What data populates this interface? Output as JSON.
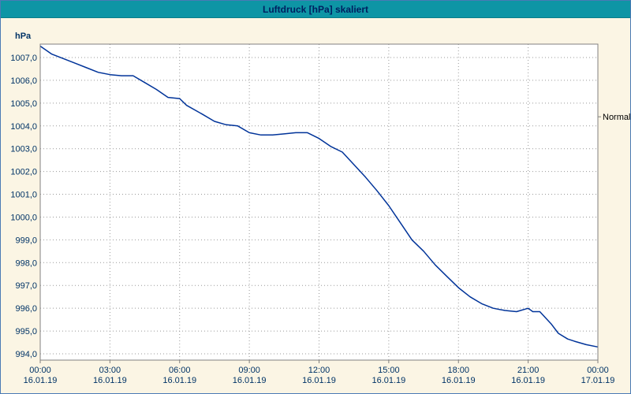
{
  "window": {
    "title": "Luftdruck [hPa] skaliert"
  },
  "chart_data": {
    "type": "line",
    "title": "Luftdruck [hPa] skaliert",
    "ylabel": "hPa",
    "xlabel": "",
    "ylim": [
      994,
      1007
    ],
    "xlim_hours": [
      0,
      24
    ],
    "grid": true,
    "y_tick_labels": [
      "994,0",
      "995,0",
      "996,0",
      "997,0",
      "998,0",
      "999,0",
      "1000,0",
      "1001,0",
      "1002,0",
      "1003,0",
      "1004,0",
      "1005,0",
      "1006,0",
      "1007,0"
    ],
    "x_ticks": [
      {
        "time": "00:00",
        "date": "16.01.19"
      },
      {
        "time": "03:00",
        "date": "16.01.19"
      },
      {
        "time": "06:00",
        "date": "16.01.19"
      },
      {
        "time": "09:00",
        "date": "16.01.19"
      },
      {
        "time": "12:00",
        "date": "16.01.19"
      },
      {
        "time": "15:00",
        "date": "16.01.19"
      },
      {
        "time": "18:00",
        "date": "16.01.19"
      },
      {
        "time": "21:00",
        "date": "16.01.19"
      },
      {
        "time": "00:00",
        "date": "17.01.19"
      }
    ],
    "annotation": {
      "label": "Normal",
      "value": 1004.4
    },
    "colors": {
      "titlebar": "#0e95a5",
      "title_text": "#002060",
      "background": "#fbf5e4",
      "plot_bg": "#ffffff",
      "grid": "#999999",
      "frame": "#808080",
      "line": "#003399",
      "text": "#003366"
    },
    "series": [
      {
        "name": "Luftdruck",
        "points": [
          [
            0,
            1007.5
          ],
          [
            0.5,
            1007.15
          ],
          [
            1,
            1006.95
          ],
          [
            1.5,
            1006.75
          ],
          [
            2,
            1006.55
          ],
          [
            2.5,
            1006.35
          ],
          [
            3,
            1006.25
          ],
          [
            3.5,
            1006.2
          ],
          [
            4,
            1006.2
          ],
          [
            4.5,
            1005.9
          ],
          [
            5,
            1005.6
          ],
          [
            5.5,
            1005.25
          ],
          [
            6,
            1005.2
          ],
          [
            6.3,
            1004.9
          ],
          [
            7,
            1004.5
          ],
          [
            7.5,
            1004.2
          ],
          [
            8,
            1004.05
          ],
          [
            8.5,
            1004.0
          ],
          [
            9,
            1003.7
          ],
          [
            9.5,
            1003.6
          ],
          [
            10,
            1003.6
          ],
          [
            10.5,
            1003.65
          ],
          [
            11,
            1003.7
          ],
          [
            11.5,
            1003.7
          ],
          [
            12,
            1003.45
          ],
          [
            12.5,
            1003.1
          ],
          [
            13,
            1002.85
          ],
          [
            13.5,
            1002.3
          ],
          [
            14,
            1001.75
          ],
          [
            14.5,
            1001.15
          ],
          [
            15,
            1000.5
          ],
          [
            15.5,
            999.75
          ],
          [
            16,
            999.0
          ],
          [
            16.5,
            998.5
          ],
          [
            17,
            997.9
          ],
          [
            17.5,
            997.4
          ],
          [
            18,
            996.9
          ],
          [
            18.5,
            996.5
          ],
          [
            19,
            996.2
          ],
          [
            19.5,
            996.0
          ],
          [
            20,
            995.9
          ],
          [
            20.5,
            995.85
          ],
          [
            21,
            996.0
          ],
          [
            21.2,
            995.85
          ],
          [
            21.5,
            995.85
          ],
          [
            22,
            995.3
          ],
          [
            22.3,
            994.9
          ],
          [
            22.7,
            994.65
          ],
          [
            23,
            994.55
          ],
          [
            23.5,
            994.4
          ],
          [
            24,
            994.3
          ]
        ]
      }
    ]
  }
}
